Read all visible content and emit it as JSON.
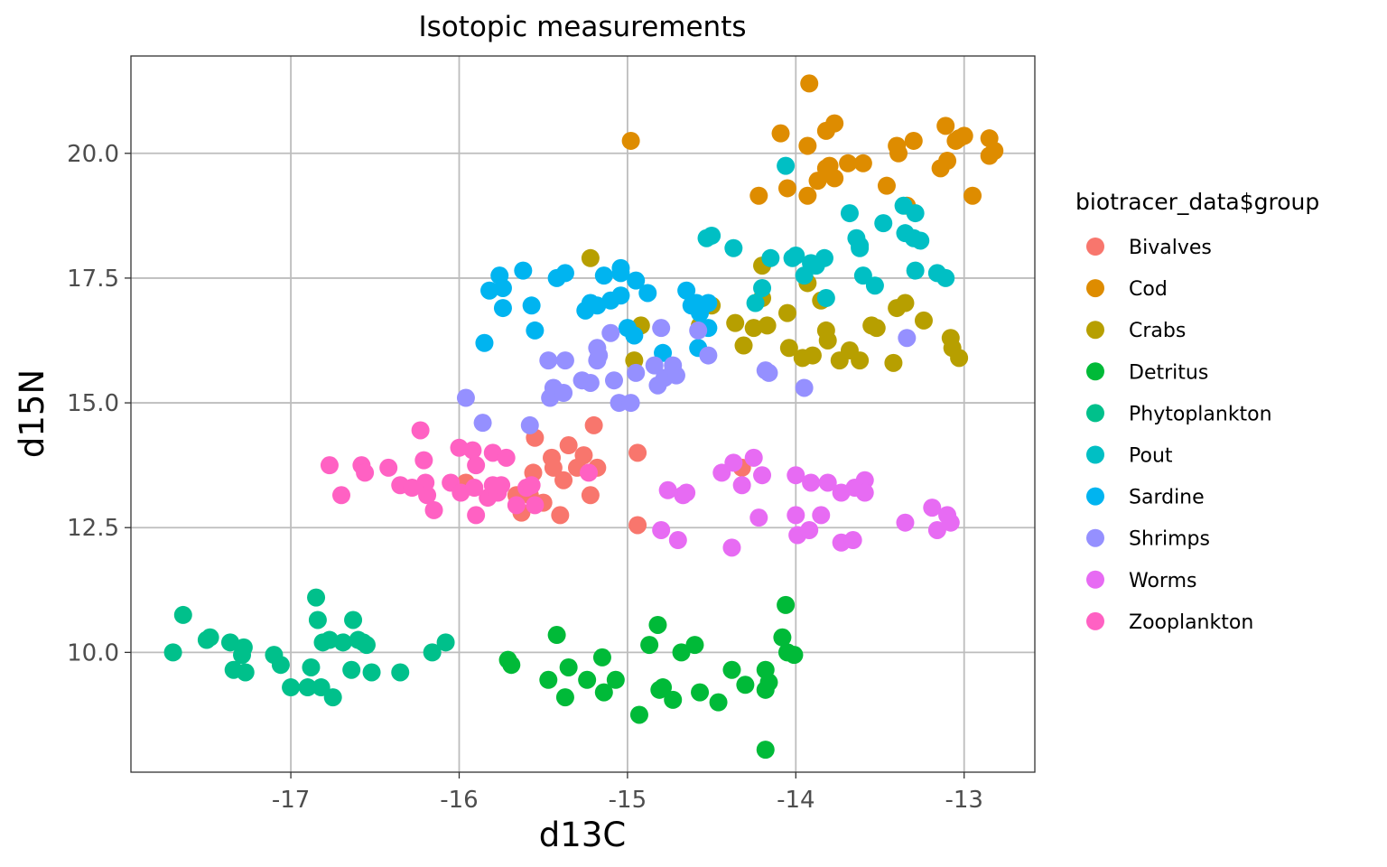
{
  "chart_data": {
    "type": "scatter",
    "title": "Isotopic measurements",
    "xlabel": "d13C",
    "ylabel": "d15N",
    "xlim": [
      -17.95,
      -12.58
    ],
    "ylim": [
      7.6,
      21.95
    ],
    "xticks": [
      -17,
      -16,
      -15,
      -14,
      -13
    ],
    "xtick_labels": [
      "-17",
      "-16",
      "-15",
      "-14",
      "-13"
    ],
    "yticks": [
      10.0,
      12.5,
      15.0,
      17.5,
      20.0
    ],
    "ytick_labels": [
      "10.0",
      "12.5",
      "15.0",
      "17.5",
      "20.0"
    ],
    "grid": true,
    "legend_title": "biotracer_data$group",
    "legend_position": "right",
    "series": [
      {
        "name": "Bivalves",
        "color": "#F8766D",
        "points": [
          [
            -15.96,
            13.4
          ],
          [
            -15.58,
            13.15
          ],
          [
            -15.56,
            13.6
          ],
          [
            -15.5,
            13.0
          ],
          [
            -15.45,
            13.9
          ],
          [
            -15.44,
            13.7
          ],
          [
            -15.38,
            13.45
          ],
          [
            -15.35,
            14.15
          ],
          [
            -15.3,
            13.7
          ],
          [
            -15.26,
            13.95
          ],
          [
            -15.22,
            13.15
          ],
          [
            -15.2,
            14.55
          ],
          [
            -15.18,
            13.7
          ],
          [
            -15.66,
            13.15
          ],
          [
            -15.4,
            12.75
          ],
          [
            -15.55,
            14.3
          ],
          [
            -14.94,
            14.0
          ],
          [
            -14.94,
            12.55
          ],
          [
            -14.32,
            13.7
          ],
          [
            -15.63,
            12.8
          ]
        ]
      },
      {
        "name": "Cod",
        "color": "#DE8C00",
        "points": [
          [
            -14.98,
            20.25
          ],
          [
            -13.92,
            21.4
          ],
          [
            -13.93,
            20.15
          ],
          [
            -13.82,
            20.45
          ],
          [
            -13.77,
            20.6
          ],
          [
            -14.09,
            20.4
          ],
          [
            -14.05,
            19.3
          ],
          [
            -14.22,
            19.15
          ],
          [
            -13.93,
            19.15
          ],
          [
            -13.87,
            19.45
          ],
          [
            -13.82,
            19.7
          ],
          [
            -13.8,
            19.75
          ],
          [
            -13.77,
            19.5
          ],
          [
            -13.69,
            19.8
          ],
          [
            -13.6,
            19.8
          ],
          [
            -13.46,
            19.35
          ],
          [
            -13.4,
            20.15
          ],
          [
            -13.39,
            20.0
          ],
          [
            -13.3,
            20.25
          ],
          [
            -13.14,
            19.7
          ],
          [
            -13.11,
            20.55
          ],
          [
            -13.1,
            19.85
          ],
          [
            -13.05,
            20.25
          ],
          [
            -13.03,
            20.3
          ],
          [
            -13.0,
            20.35
          ],
          [
            -12.95,
            19.15
          ],
          [
            -12.85,
            20.3
          ],
          [
            -12.85,
            19.95
          ],
          [
            -12.82,
            20.05
          ],
          [
            -13.34,
            18.95
          ]
        ]
      },
      {
        "name": "Crabs",
        "color": "#B79F00",
        "points": [
          [
            -15.22,
            17.9
          ],
          [
            -14.96,
            15.85
          ],
          [
            -14.92,
            16.55
          ],
          [
            -14.57,
            16.55
          ],
          [
            -14.5,
            16.95
          ],
          [
            -14.36,
            16.6
          ],
          [
            -14.31,
            16.15
          ],
          [
            -14.25,
            16.5
          ],
          [
            -14.2,
            17.75
          ],
          [
            -14.2,
            17.1
          ],
          [
            -14.17,
            16.55
          ],
          [
            -14.05,
            16.8
          ],
          [
            -14.04,
            16.1
          ],
          [
            -13.96,
            15.9
          ],
          [
            -13.93,
            17.4
          ],
          [
            -13.9,
            15.95
          ],
          [
            -13.85,
            17.05
          ],
          [
            -13.82,
            16.45
          ],
          [
            -13.81,
            16.25
          ],
          [
            -13.74,
            15.85
          ],
          [
            -13.68,
            16.05
          ],
          [
            -13.62,
            15.85
          ],
          [
            -13.55,
            16.55
          ],
          [
            -13.52,
            16.5
          ],
          [
            -13.42,
            15.8
          ],
          [
            -13.4,
            16.9
          ],
          [
            -13.35,
            17.0
          ],
          [
            -13.24,
            16.65
          ],
          [
            -13.08,
            16.3
          ],
          [
            -13.07,
            16.1
          ],
          [
            -13.03,
            15.9
          ]
        ]
      },
      {
        "name": "Detritus",
        "color": "#00BA38",
        "points": [
          [
            -15.71,
            9.85
          ],
          [
            -15.69,
            9.75
          ],
          [
            -15.47,
            9.45
          ],
          [
            -15.42,
            10.35
          ],
          [
            -15.37,
            9.1
          ],
          [
            -15.35,
            9.7
          ],
          [
            -15.24,
            9.45
          ],
          [
            -15.15,
            9.9
          ],
          [
            -15.14,
            9.2
          ],
          [
            -15.07,
            9.45
          ],
          [
            -14.93,
            8.75
          ],
          [
            -14.87,
            10.15
          ],
          [
            -14.82,
            10.55
          ],
          [
            -14.81,
            9.25
          ],
          [
            -14.79,
            9.3
          ],
          [
            -14.73,
            9.05
          ],
          [
            -14.68,
            10.0
          ],
          [
            -14.6,
            10.15
          ],
          [
            -14.57,
            9.2
          ],
          [
            -14.46,
            9.0
          ],
          [
            -14.38,
            9.65
          ],
          [
            -14.3,
            9.35
          ],
          [
            -14.18,
            9.65
          ],
          [
            -14.18,
            9.25
          ],
          [
            -14.16,
            9.4
          ],
          [
            -14.08,
            10.3
          ],
          [
            -14.06,
            10.95
          ],
          [
            -14.05,
            10.0
          ],
          [
            -14.01,
            9.95
          ],
          [
            -14.18,
            8.05
          ]
        ]
      },
      {
        "name": "Phytoplankton",
        "color": "#00C08B",
        "points": [
          [
            -17.7,
            10.0
          ],
          [
            -17.64,
            10.75
          ],
          [
            -17.5,
            10.25
          ],
          [
            -17.48,
            10.3
          ],
          [
            -17.36,
            10.2
          ],
          [
            -17.34,
            9.65
          ],
          [
            -17.29,
            9.95
          ],
          [
            -17.28,
            10.1
          ],
          [
            -17.27,
            9.6
          ],
          [
            -17.1,
            9.95
          ],
          [
            -17.06,
            9.75
          ],
          [
            -17.0,
            9.3
          ],
          [
            -16.9,
            9.3
          ],
          [
            -16.88,
            9.7
          ],
          [
            -16.85,
            11.1
          ],
          [
            -16.84,
            10.65
          ],
          [
            -16.82,
            9.3
          ],
          [
            -16.81,
            10.2
          ],
          [
            -16.77,
            10.25
          ],
          [
            -16.75,
            9.1
          ],
          [
            -16.69,
            10.2
          ],
          [
            -16.64,
            9.65
          ],
          [
            -16.63,
            10.65
          ],
          [
            -16.6,
            10.25
          ],
          [
            -16.57,
            10.2
          ],
          [
            -16.55,
            10.15
          ],
          [
            -16.52,
            9.6
          ],
          [
            -16.35,
            9.6
          ],
          [
            -16.16,
            10.0
          ],
          [
            -16.08,
            10.2
          ]
        ]
      },
      {
        "name": "Pout",
        "color": "#00BFC4",
        "points": [
          [
            -14.06,
            19.75
          ],
          [
            -13.68,
            18.8
          ],
          [
            -13.48,
            18.6
          ],
          [
            -13.36,
            18.95
          ],
          [
            -13.35,
            18.4
          ],
          [
            -13.29,
            18.8
          ],
          [
            -13.3,
            18.3
          ],
          [
            -13.26,
            18.25
          ],
          [
            -13.16,
            17.6
          ],
          [
            -13.11,
            17.5
          ],
          [
            -13.29,
            17.65
          ],
          [
            -13.6,
            17.55
          ],
          [
            -13.53,
            17.35
          ],
          [
            -13.62,
            18.1
          ],
          [
            -13.64,
            18.3
          ],
          [
            -13.83,
            17.9
          ],
          [
            -13.88,
            17.75
          ],
          [
            -13.91,
            17.8
          ],
          [
            -13.95,
            17.55
          ],
          [
            -14.0,
            17.95
          ],
          [
            -14.02,
            17.9
          ],
          [
            -14.15,
            17.9
          ],
          [
            -14.24,
            17.0
          ],
          [
            -14.2,
            17.3
          ],
          [
            -14.37,
            18.1
          ],
          [
            -14.5,
            18.35
          ],
          [
            -14.53,
            18.3
          ],
          [
            -13.82,
            17.1
          ],
          [
            -14.55,
            16.95
          ],
          [
            -13.62,
            18.15
          ]
        ]
      },
      {
        "name": "Sardine",
        "color": "#00B4F0",
        "points": [
          [
            -15.85,
            16.2
          ],
          [
            -15.82,
            17.25
          ],
          [
            -15.76,
            17.55
          ],
          [
            -15.74,
            17.3
          ],
          [
            -15.74,
            16.9
          ],
          [
            -15.62,
            17.65
          ],
          [
            -15.57,
            16.95
          ],
          [
            -15.55,
            16.45
          ],
          [
            -15.42,
            17.5
          ],
          [
            -15.37,
            17.6
          ],
          [
            -15.25,
            16.85
          ],
          [
            -15.22,
            17.0
          ],
          [
            -15.14,
            17.55
          ],
          [
            -15.1,
            17.05
          ],
          [
            -15.04,
            17.7
          ],
          [
            -15.04,
            17.6
          ],
          [
            -15.04,
            17.15
          ],
          [
            -15.0,
            16.5
          ],
          [
            -14.96,
            16.35
          ],
          [
            -14.95,
            17.45
          ],
          [
            -14.88,
            17.2
          ],
          [
            -14.79,
            16.0
          ],
          [
            -14.65,
            17.25
          ],
          [
            -14.62,
            16.95
          ],
          [
            -14.57,
            16.8
          ],
          [
            -14.52,
            16.5
          ],
          [
            -14.58,
            16.1
          ],
          [
            -14.52,
            17.0
          ],
          [
            -14.59,
            17.0
          ],
          [
            -15.18,
            16.95
          ]
        ]
      },
      {
        "name": "Shrimps",
        "color": "#9590FF",
        "points": [
          [
            -15.96,
            15.1
          ],
          [
            -15.86,
            14.6
          ],
          [
            -15.58,
            14.55
          ],
          [
            -15.47,
            15.85
          ],
          [
            -15.46,
            15.1
          ],
          [
            -15.44,
            15.3
          ],
          [
            -15.38,
            15.2
          ],
          [
            -15.37,
            15.85
          ],
          [
            -15.27,
            15.45
          ],
          [
            -15.22,
            15.4
          ],
          [
            -15.18,
            16.1
          ],
          [
            -15.18,
            15.85
          ],
          [
            -15.17,
            15.95
          ],
          [
            -15.1,
            16.4
          ],
          [
            -15.08,
            15.45
          ],
          [
            -15.05,
            15.0
          ],
          [
            -14.98,
            15.0
          ],
          [
            -14.95,
            15.6
          ],
          [
            -14.84,
            15.75
          ],
          [
            -14.8,
            16.5
          ],
          [
            -14.82,
            15.35
          ],
          [
            -14.78,
            15.5
          ],
          [
            -14.73,
            15.75
          ],
          [
            -14.71,
            15.55
          ],
          [
            -14.58,
            16.45
          ],
          [
            -14.52,
            15.95
          ],
          [
            -14.18,
            15.65
          ],
          [
            -14.16,
            15.6
          ],
          [
            -13.95,
            15.3
          ],
          [
            -13.34,
            16.3
          ]
        ]
      },
      {
        "name": "Worms",
        "color": "#E76BF3",
        "points": [
          [
            -14.76,
            13.25
          ],
          [
            -14.8,
            12.45
          ],
          [
            -14.7,
            12.25
          ],
          [
            -14.67,
            13.15
          ],
          [
            -14.65,
            13.2
          ],
          [
            -14.44,
            13.6
          ],
          [
            -14.37,
            13.8
          ],
          [
            -14.38,
            12.1
          ],
          [
            -14.32,
            13.35
          ],
          [
            -14.25,
            13.9
          ],
          [
            -14.22,
            12.7
          ],
          [
            -14.2,
            13.55
          ],
          [
            -14.0,
            13.55
          ],
          [
            -14.0,
            12.75
          ],
          [
            -13.99,
            12.35
          ],
          [
            -13.92,
            12.45
          ],
          [
            -13.85,
            12.75
          ],
          [
            -13.81,
            13.4
          ],
          [
            -13.91,
            13.4
          ],
          [
            -13.73,
            13.2
          ],
          [
            -13.73,
            12.2
          ],
          [
            -13.66,
            12.25
          ],
          [
            -13.65,
            13.3
          ],
          [
            -13.59,
            13.45
          ],
          [
            -13.59,
            13.2
          ],
          [
            -13.35,
            12.6
          ],
          [
            -13.19,
            12.9
          ],
          [
            -13.16,
            12.45
          ],
          [
            -13.1,
            12.75
          ],
          [
            -13.08,
            12.6
          ]
        ]
      },
      {
        "name": "Zooplankton",
        "color": "#FF61C3",
        "points": [
          [
            -16.77,
            13.75
          ],
          [
            -16.7,
            13.15
          ],
          [
            -16.58,
            13.75
          ],
          [
            -16.56,
            13.6
          ],
          [
            -16.42,
            13.7
          ],
          [
            -16.35,
            13.35
          ],
          [
            -16.28,
            13.3
          ],
          [
            -16.23,
            14.45
          ],
          [
            -16.21,
            13.85
          ],
          [
            -16.2,
            13.4
          ],
          [
            -16.19,
            13.15
          ],
          [
            -16.15,
            12.85
          ],
          [
            -16.05,
            13.4
          ],
          [
            -16.0,
            14.1
          ],
          [
            -15.99,
            13.2
          ],
          [
            -15.92,
            14.05
          ],
          [
            -15.91,
            13.3
          ],
          [
            -15.9,
            13.75
          ],
          [
            -15.9,
            12.75
          ],
          [
            -15.83,
            13.1
          ],
          [
            -15.8,
            13.35
          ],
          [
            -15.8,
            14.0
          ],
          [
            -15.77,
            13.2
          ],
          [
            -15.75,
            13.35
          ],
          [
            -15.72,
            13.9
          ],
          [
            -15.66,
            12.95
          ],
          [
            -15.55,
            12.95
          ],
          [
            -15.6,
            13.3
          ],
          [
            -15.57,
            13.35
          ],
          [
            -15.23,
            13.6
          ]
        ]
      }
    ]
  }
}
